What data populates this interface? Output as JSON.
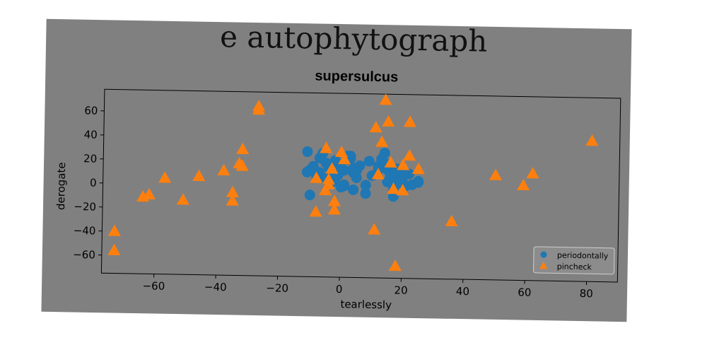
{
  "figure": {
    "suptitle": "e autophytograph"
  },
  "chart_data": {
    "type": "scatter",
    "title": "supersulcus",
    "xlabel": "tearlessly",
    "ylabel": "derogate",
    "xlim": [
      -77,
      90
    ],
    "ylim": [
      -75,
      78
    ],
    "xticks": [
      -60,
      -40,
      -20,
      0,
      20,
      40,
      60,
      80
    ],
    "yticks": [
      -60,
      -40,
      -20,
      0,
      20,
      40,
      60
    ],
    "grid": false,
    "legend_position": "lower-right",
    "colors": {
      "figure_bg": "#808080",
      "axes_bg": "#808080",
      "periodontally": "#1f77b4",
      "pincheck": "#ff7f0e"
    },
    "series": [
      {
        "name": "periodontally",
        "marker": "circle",
        "x": [
          -11,
          -10,
          -9,
          -8,
          -7,
          -6,
          -5,
          -4,
          -3,
          -2,
          -1,
          0,
          1,
          2,
          3,
          4,
          5,
          6,
          -10,
          -6,
          -3,
          1,
          3,
          4,
          8,
          10,
          12,
          13,
          14,
          15,
          16,
          17,
          18,
          19,
          20,
          21,
          22,
          25,
          25,
          14,
          17,
          0,
          -2,
          -5,
          -8,
          -11,
          2,
          5,
          8,
          15,
          18,
          20,
          12,
          4,
          -1,
          -9,
          -7,
          9,
          23,
          1
        ],
        "y": [
          29,
          14,
          17,
          10,
          12,
          28,
          20,
          16,
          11,
          5,
          20,
          16,
          2,
          23,
          26,
          12,
          8,
          18,
          -7,
          8,
          4,
          14,
          24,
          16,
          2,
          10,
          18,
          24,
          29,
          15,
          10,
          0,
          8,
          14,
          9,
          2,
          12,
          5,
          6,
          21,
          -7,
          0,
          22,
          6,
          9,
          12,
          26,
          14,
          -5,
          5,
          16,
          3,
          15,
          -2,
          10,
          15,
          24,
          22,
          3,
          1
        ]
      },
      {
        "name": "pincheck",
        "marker": "triangle",
        "x": [
          -27,
          -27,
          -73,
          -73,
          -64,
          -62,
          -57,
          -51,
          -46,
          -38,
          -35,
          -35,
          -33,
          -32,
          -32,
          -8,
          -8,
          -5,
          -5,
          -4,
          -4,
          -3,
          -2,
          -2,
          0,
          1,
          11,
          11,
          12,
          13,
          14,
          15,
          16,
          17,
          18,
          20,
          20,
          22,
          22,
          25,
          36,
          50,
          59,
          62,
          81
        ],
        "y": [
          66,
          63,
          -40,
          -56,
          -11,
          -9,
          5,
          -13,
          7,
          12,
          -6,
          -13,
          18,
          16,
          30,
          -21,
          7,
          32,
          -3,
          6,
          2,
          15,
          -12,
          -19,
          29,
          23,
          50,
          -35,
          11,
          38,
          73,
          55,
          21,
          -1,
          -65,
          -2,
          19,
          55,
          27,
          16,
          -27,
          12,
          4,
          14,
          42
        ]
      }
    ]
  }
}
